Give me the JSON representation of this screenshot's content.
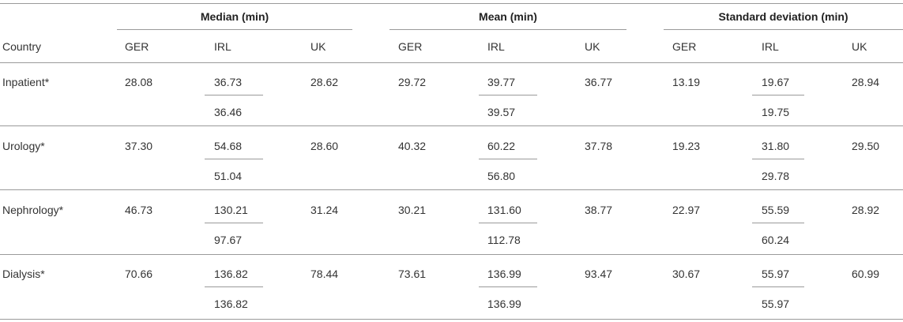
{
  "table": {
    "group_headers": [
      "Median (min)",
      "Mean (min)",
      "Standard deviation (min)"
    ],
    "country_label": "Country",
    "sub_headers": [
      "GER",
      "IRL",
      "UK",
      "GER",
      "IRL",
      "UK",
      "GER",
      "IRL",
      "UK"
    ],
    "rows": [
      {
        "label": "Inpatient*",
        "median": {
          "GER": "28.08",
          "IRL": [
            "36.73",
            "36.46"
          ],
          "UK": "28.62"
        },
        "mean": {
          "GER": "29.72",
          "IRL": [
            "39.77",
            "39.57"
          ],
          "UK": "36.77"
        },
        "sd": {
          "GER": "13.19",
          "IRL": [
            "19.67",
            "19.75"
          ],
          "UK": "28.94"
        }
      },
      {
        "label": "Urology*",
        "median": {
          "GER": "37.30",
          "IRL": [
            "54.68",
            "51.04"
          ],
          "UK": "28.60"
        },
        "mean": {
          "GER": "40.32",
          "IRL": [
            "60.22",
            "56.80"
          ],
          "UK": "37.78"
        },
        "sd": {
          "GER": "19.23",
          "IRL": [
            "31.80",
            "29.78"
          ],
          "UK": "29.50"
        }
      },
      {
        "label": "Nephrology*",
        "median": {
          "GER": "46.73",
          "IRL": [
            "130.21",
            "97.67"
          ],
          "UK": "31.24"
        },
        "mean": {
          "GER": "30.21",
          "IRL": [
            "131.60",
            "112.78"
          ],
          "UK": "38.77"
        },
        "sd": {
          "GER": "22.97",
          "IRL": [
            "55.59",
            "60.24"
          ],
          "UK": "28.92"
        }
      },
      {
        "label": "Dialysis*",
        "median": {
          "GER": "70.66",
          "IRL": [
            "136.82",
            "136.82"
          ],
          "UK": "78.44"
        },
        "mean": {
          "GER": "73.61",
          "IRL": [
            "136.99",
            "136.99"
          ],
          "UK": "93.47"
        },
        "sd": {
          "GER": "30.67",
          "IRL": [
            "55.97",
            "55.97"
          ],
          "UK": "60.99"
        }
      }
    ]
  }
}
